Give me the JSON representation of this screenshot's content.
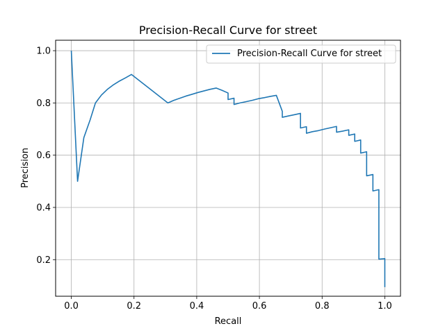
{
  "chart_data": {
    "type": "line",
    "title": "Precision-Recall Curve for street",
    "xlabel": "Recall",
    "ylabel": "Precision",
    "xlim": [
      -0.05,
      1.05
    ],
    "ylim": [
      0.06,
      1.04
    ],
    "xticks": [
      0.0,
      0.2,
      0.4,
      0.6,
      0.8,
      1.0
    ],
    "xtick_labels": [
      "0.0",
      "0.2",
      "0.4",
      "0.6",
      "0.8",
      "1.0"
    ],
    "yticks": [
      0.2,
      0.4,
      0.6,
      0.8,
      1.0
    ],
    "ytick_labels": [
      "0.2",
      "0.4",
      "0.6",
      "0.8",
      "1.0"
    ],
    "grid": true,
    "legend_position": "top-right",
    "series": [
      {
        "name": "Precision-Recall Curve for street",
        "color": "#1f77b4",
        "points": [
          [
            0.0,
            1.0
          ],
          [
            0.02,
            0.5
          ],
          [
            0.04,
            0.667
          ],
          [
            0.06,
            0.735
          ],
          [
            0.077,
            0.8
          ],
          [
            0.096,
            0.83
          ],
          [
            0.115,
            0.852
          ],
          [
            0.135,
            0.87
          ],
          [
            0.154,
            0.884
          ],
          [
            0.173,
            0.896
          ],
          [
            0.192,
            0.909
          ],
          [
            0.308,
            0.8
          ],
          [
            0.327,
            0.81
          ],
          [
            0.346,
            0.818
          ],
          [
            0.365,
            0.826
          ],
          [
            0.385,
            0.833
          ],
          [
            0.404,
            0.84
          ],
          [
            0.423,
            0.846
          ],
          [
            0.442,
            0.852
          ],
          [
            0.462,
            0.857
          ],
          [
            0.481,
            0.848
          ],
          [
            0.5,
            0.838
          ],
          [
            0.5,
            0.813
          ],
          [
            0.519,
            0.818
          ],
          [
            0.519,
            0.794
          ],
          [
            0.538,
            0.8
          ],
          [
            0.558,
            0.805
          ],
          [
            0.577,
            0.81
          ],
          [
            0.596,
            0.816
          ],
          [
            0.615,
            0.82
          ],
          [
            0.635,
            0.825
          ],
          [
            0.654,
            0.829
          ],
          [
            0.673,
            0.768
          ],
          [
            0.673,
            0.745
          ],
          [
            0.692,
            0.75
          ],
          [
            0.712,
            0.755
          ],
          [
            0.731,
            0.76
          ],
          [
            0.731,
            0.704
          ],
          [
            0.75,
            0.709
          ],
          [
            0.75,
            0.684
          ],
          [
            0.769,
            0.69
          ],
          [
            0.788,
            0.694
          ],
          [
            0.808,
            0.7
          ],
          [
            0.827,
            0.705
          ],
          [
            0.846,
            0.71
          ],
          [
            0.846,
            0.688
          ],
          [
            0.865,
            0.692
          ],
          [
            0.885,
            0.697
          ],
          [
            0.885,
            0.676
          ],
          [
            0.904,
            0.681
          ],
          [
            0.904,
            0.653
          ],
          [
            0.923,
            0.658
          ],
          [
            0.923,
            0.608
          ],
          [
            0.942,
            0.613
          ],
          [
            0.942,
            0.521
          ],
          [
            0.962,
            0.526
          ],
          [
            0.962,
            0.463
          ],
          [
            0.981,
            0.468
          ],
          [
            0.981,
            0.202
          ],
          [
            1.0,
            0.204
          ],
          [
            1.0,
            0.095
          ]
        ]
      }
    ]
  }
}
